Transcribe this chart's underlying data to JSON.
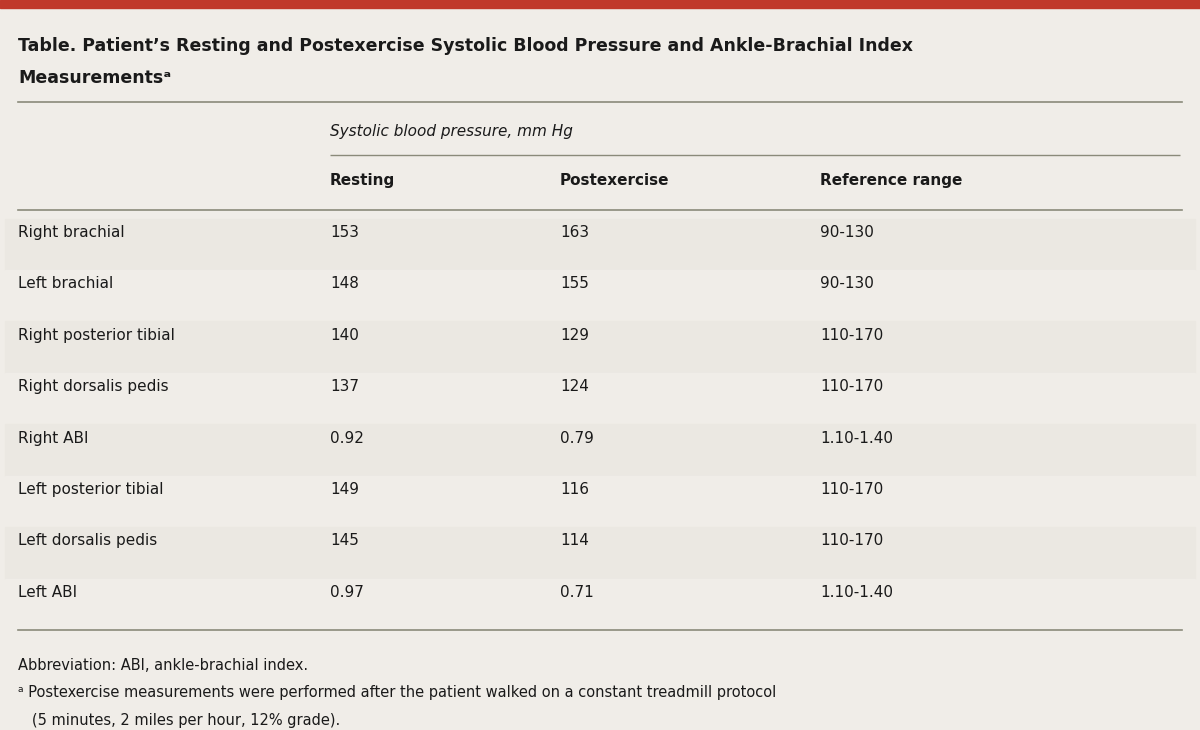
{
  "title_line1": "Table. Patient’s Resting and Postexercise Systolic Blood Pressure and Ankle-Brachial Index",
  "title_line2": "Measurementsᵃ",
  "bg_color": "#f0ede8",
  "top_bar_color": "#c0392b",
  "header_group": "Systolic blood pressure, mm Hg",
  "col_headers": [
    "Resting",
    "Postexercise",
    "Reference range"
  ],
  "row_labels": [
    "Right brachial",
    "Left brachial",
    "Right posterior tibial",
    "Right dorsalis pedis",
    "Right ABI",
    "Left posterior tibial",
    "Left dorsalis pedis",
    "Left ABI"
  ],
  "resting": [
    "153",
    "148",
    "140",
    "137",
    "0.92",
    "149",
    "145",
    "0.97"
  ],
  "postexercise": [
    "163",
    "155",
    "129",
    "124",
    "0.79",
    "116",
    "114",
    "0.71"
  ],
  "reference": [
    "90-130",
    "90-130",
    "110-170",
    "110-170",
    "1.10-1.40",
    "110-170",
    "110-170",
    "1.10-1.40"
  ],
  "footnote1": "Abbreviation: ABI, ankle-brachial index.",
  "footnote2": "ᵃ Postexercise measurements were performed after the patient walked on a constant treadmill protocol",
  "footnote3": "   (5 minutes, 2 miles per hour, 12% grade).",
  "text_color": "#1a1a1a",
  "line_color": "#8a8a7a",
  "title_color": "#1a1a1a"
}
